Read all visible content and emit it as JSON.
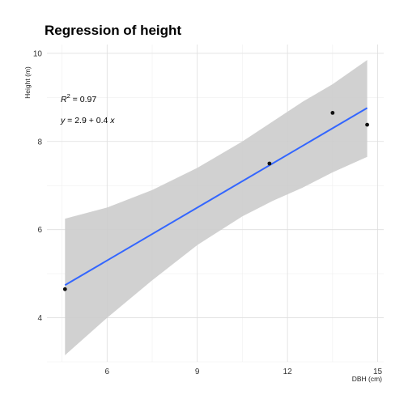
{
  "chart_data": {
    "type": "scatter",
    "title": "Regression of height",
    "xlabel": "DBH (cm)",
    "ylabel": "Height (m)",
    "xlim": [
      4.0,
      15.2
    ],
    "ylim": [
      3.0,
      10.2
    ],
    "x_ticks": [
      6,
      9,
      12,
      15
    ],
    "y_ticks": [
      4,
      6,
      8,
      10
    ],
    "x_tick_labels": [
      "6",
      "9",
      "12",
      "15"
    ],
    "y_tick_labels": [
      "4",
      "6",
      "8",
      "10"
    ],
    "grid": true,
    "points": {
      "x": [
        4.6,
        11.4,
        13.5,
        14.65
      ],
      "y": [
        4.65,
        7.5,
        8.65,
        8.38
      ]
    },
    "fit": {
      "intercept": 2.9,
      "slope": 0.4,
      "x_range": [
        4.6,
        14.65
      ],
      "color": "#3366FF"
    },
    "confidence_band": {
      "x": [
        4.6,
        6.0,
        7.5,
        9.0,
        10.5,
        11.5,
        12.5,
        13.5,
        14.65
      ],
      "lower": [
        3.15,
        4.0,
        4.85,
        5.65,
        6.3,
        6.65,
        6.95,
        7.3,
        7.65
      ],
      "upper": [
        6.25,
        6.5,
        6.9,
        7.4,
        8.0,
        8.45,
        8.9,
        9.3,
        9.85
      ],
      "color": "#cccccc"
    },
    "annotations": {
      "r2_prefix": "R",
      "r2_sup": "2",
      "r2_value": " = 0.97",
      "eq_y": "y",
      "eq_mid": " = 2.9 + 0.4 ",
      "eq_x": "x"
    }
  }
}
